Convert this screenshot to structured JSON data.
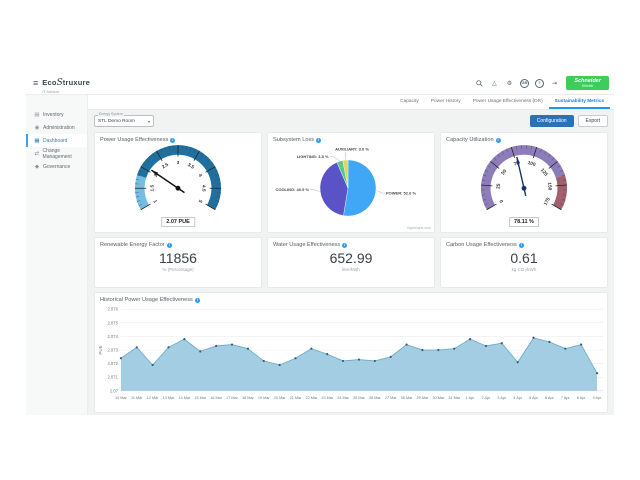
{
  "ui": {
    "info_glyph": "i",
    "icons": {
      "menu": "≡",
      "alert": "△",
      "settings": "⚙",
      "help": "?",
      "logout": "⇥",
      "caret": "▾"
    }
  },
  "header": {
    "app_name_prefix": "Eco",
    "app_name_mark": "S",
    "app_name_suffix": "truxure",
    "app_subtitle": "IT Advisor",
    "avatar_initials": "GB",
    "brand_line1": "Schneider",
    "brand_line2": "Electric"
  },
  "tabs": [
    {
      "label": "Capacity",
      "active": false
    },
    {
      "label": "Power History",
      "active": false
    },
    {
      "label": "Power Usage Effectiveness (DR)",
      "active": false
    },
    {
      "label": "Sustainability Metrics",
      "active": true
    }
  ],
  "sidebar": {
    "items": [
      {
        "label": "Inventory",
        "glyph": "▤",
        "active": false
      },
      {
        "label": "Administration",
        "glyph": "◉",
        "active": false
      },
      {
        "label": "Dashboard",
        "glyph": "▦",
        "active": true
      },
      {
        "label": "Change Management",
        "glyph": "⇄",
        "active": false
      },
      {
        "label": "Governance",
        "glyph": "◆",
        "active": false
      }
    ]
  },
  "toolbar": {
    "energy_system_label": "Energy System",
    "energy_system_value": "STL Demo Room",
    "configuration_label": "Configuration",
    "export_label": "Export"
  },
  "stats": [
    {
      "title": "Renewable Energy Factor",
      "value": "11856",
      "unit": "% (Percentage)"
    },
    {
      "title": "Water Usage Effectiveness",
      "value": "652.99",
      "unit": "liter/kWh"
    },
    {
      "title": "Carbon Usage Effectiveness",
      "value": "0.61",
      "unit": "kg CO₂/kWh"
    }
  ],
  "chart_data": [
    {
      "type": "gauge",
      "title": "Power Usage Effectiveness",
      "value": 2.07,
      "display": "2.07 PUE",
      "min": 1,
      "max": 5,
      "tick_interval": 0.5,
      "tick_labels": [
        "1",
        "1.5",
        "2",
        "2.5",
        "3",
        "3.5",
        "4",
        "4.5",
        "5"
      ],
      "bands": [
        {
          "from": 1,
          "to": 1.8,
          "color": "#74bde4"
        },
        {
          "from": 1.8,
          "to": 5,
          "color": "#1f6f9f"
        }
      ],
      "needle_color": "#111111"
    },
    {
      "type": "pie",
      "title": "Subsystem Loss",
      "slices": [
        {
          "name": "POWER",
          "pct": 52.6,
          "color": "#3fa7f5"
        },
        {
          "name": "COOLING",
          "pct": 40.9,
          "color": "#5a52c7"
        },
        {
          "name": "LIGHTING",
          "pct": 3.5,
          "color": "#57c78f"
        },
        {
          "name": "AUXILIARY",
          "pct": 3.0,
          "color": "#e4d354"
        }
      ],
      "credit": "highcharts.com"
    },
    {
      "type": "gauge",
      "title": "Capacity Utilization",
      "value": 78.11,
      "display": "78.11 %",
      "min": 0,
      "max": 175,
      "tick_interval": 25,
      "tick_labels": [
        "0",
        "25",
        "50",
        "75",
        "100",
        "125",
        "150",
        "175"
      ],
      "bands": [
        {
          "from": 0,
          "to": 140,
          "color": "#8d7cba"
        },
        {
          "from": 140,
          "to": 175,
          "color": "#a2606e"
        }
      ],
      "needle_color": "#1a2e6e"
    },
    {
      "type": "area",
      "title": "Historical Power Usage Effectiveness",
      "ylabel": "PUE",
      "ylim": [
        2.07,
        2.076
      ],
      "yticks": [
        "2.07",
        "2.071",
        "2.072",
        "2.073",
        "2.074",
        "2.075",
        "2.076"
      ],
      "grid": true,
      "legend": "none",
      "line_color": "#6aa9c8",
      "fill_color": "#a3cde3",
      "marker_color": "#2f5d75",
      "categories": [
        "10 Mar",
        "11 Mar",
        "12 Mar",
        "13 Mar",
        "14 Mar",
        "15 Mar",
        "16 Mar",
        "17 Mar",
        "18 Mar",
        "19 Mar",
        "20 Mar",
        "21 Mar",
        "22 Mar",
        "23 Mar",
        "24 Mar",
        "25 Mar",
        "26 Mar",
        "27 Mar",
        "28 Mar",
        "29 Mar",
        "30 Mar",
        "31 Mar",
        "1 Apr",
        "2 Apr",
        "3 Apr",
        "4 Apr",
        "5 Apr",
        "6 Apr",
        "7 Apr",
        "8 Apr",
        "9 Apr"
      ],
      "values": [
        2.0724,
        2.0732,
        2.0719,
        2.0732,
        2.0738,
        2.0729,
        2.0733,
        2.0734,
        2.0731,
        2.0722,
        2.0719,
        2.0724,
        2.0731,
        2.0727,
        2.0722,
        2.0723,
        2.0722,
        2.0725,
        2.0734,
        2.073,
        2.073,
        2.0731,
        2.0738,
        2.0733,
        2.0735,
        2.0721,
        2.0739,
        2.0736,
        2.0731,
        2.0734,
        2.0713
      ]
    }
  ]
}
